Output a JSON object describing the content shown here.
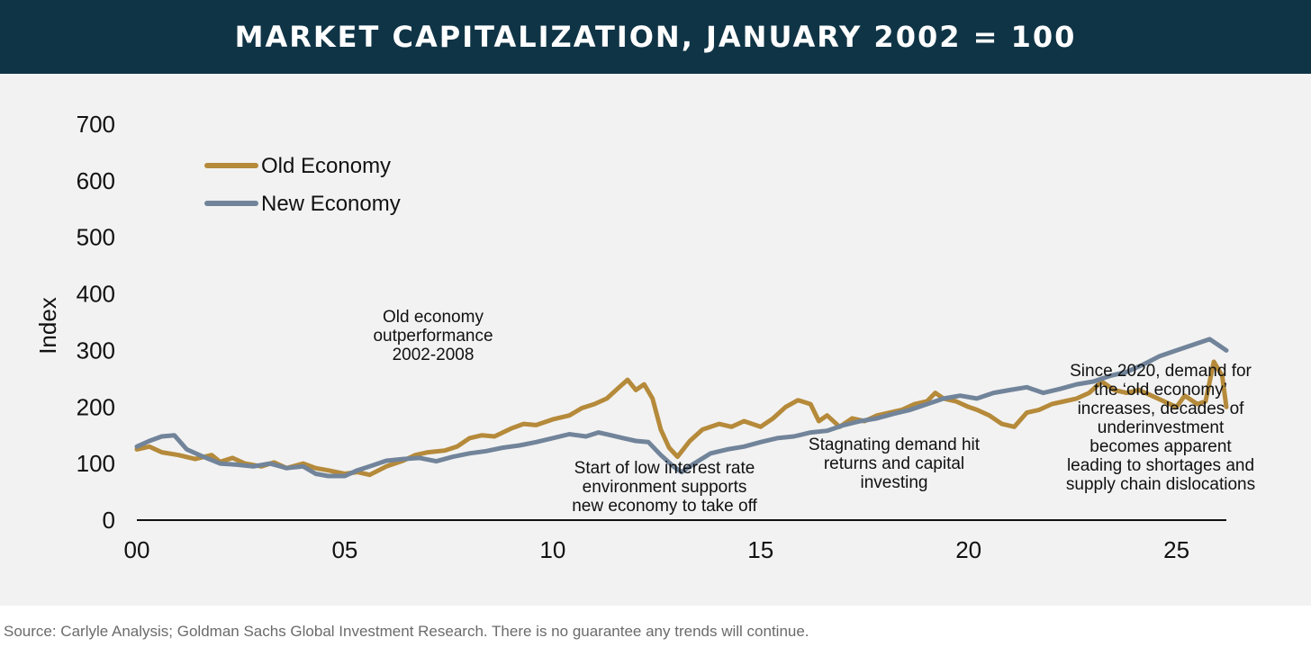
{
  "header": {
    "title": "MARKET CAPITALIZATION, JANUARY 2002 = 100"
  },
  "footer": {
    "source": "Source: Carlyle Analysis; Goldman Sachs Global Investment Research. There is no guarantee any trends will continue."
  },
  "colors": {
    "old_economy": "#b58a3a",
    "new_economy": "#71849a",
    "header_bg": "#0f3446",
    "panel_bg": "#f2f2f2",
    "axis": "#111111"
  },
  "chart_data": {
    "type": "line",
    "title": "MARKET CAPITALIZATION, JANUARY 2002 = 100",
    "xlabel": "",
    "ylabel": "Index",
    "xlim": [
      2000,
      2026.2
    ],
    "ylim": [
      0,
      700
    ],
    "x_ticks": [
      2000,
      2005,
      2010,
      2015,
      2020,
      2025
    ],
    "x_tick_labels": [
      "00",
      "05",
      "10",
      "15",
      "20",
      "25"
    ],
    "y_ticks": [
      0,
      100,
      200,
      300,
      400,
      500,
      600,
      700
    ],
    "y_tick_labels": [
      "0",
      "100",
      "200",
      "300",
      "400",
      "500",
      "600",
      "700"
    ],
    "grid": false,
    "legend": "top-left",
    "series": [
      {
        "name": "Old Economy",
        "color": "#b58a3a",
        "points": [
          [
            2000.0,
            125
          ],
          [
            2000.3,
            130
          ],
          [
            2000.6,
            120
          ],
          [
            2001.0,
            115
          ],
          [
            2001.4,
            108
          ],
          [
            2001.8,
            115
          ],
          [
            2002.0,
            103
          ],
          [
            2002.3,
            110
          ],
          [
            2002.6,
            100
          ],
          [
            2003.0,
            95
          ],
          [
            2003.3,
            102
          ],
          [
            2003.6,
            92
          ],
          [
            2004.0,
            100
          ],
          [
            2004.3,
            92
          ],
          [
            2004.6,
            88
          ],
          [
            2005.0,
            82
          ],
          [
            2005.3,
            85
          ],
          [
            2005.6,
            80
          ],
          [
            2006.0,
            95
          ],
          [
            2006.4,
            105
          ],
          [
            2006.7,
            115
          ],
          [
            2007.0,
            120
          ],
          [
            2007.4,
            123
          ],
          [
            2007.7,
            130
          ],
          [
            2008.0,
            145
          ],
          [
            2008.3,
            150
          ],
          [
            2008.6,
            148
          ],
          [
            2009.0,
            162
          ],
          [
            2009.3,
            170
          ],
          [
            2009.6,
            168
          ],
          [
            2010.0,
            178
          ],
          [
            2010.4,
            185
          ],
          [
            2010.7,
            198
          ],
          [
            2011.0,
            205
          ],
          [
            2011.3,
            215
          ],
          [
            2011.6,
            235
          ],
          [
            2011.8,
            248
          ],
          [
            2012.0,
            230
          ],
          [
            2012.2,
            240
          ],
          [
            2012.4,
            215
          ],
          [
            2012.6,
            160
          ],
          [
            2012.8,
            128
          ],
          [
            2013.0,
            112
          ],
          [
            2013.3,
            140
          ],
          [
            2013.6,
            160
          ],
          [
            2014.0,
            170
          ],
          [
            2014.3,
            165
          ],
          [
            2014.6,
            175
          ],
          [
            2015.0,
            165
          ],
          [
            2015.3,
            180
          ],
          [
            2015.6,
            200
          ],
          [
            2015.9,
            212
          ],
          [
            2016.2,
            205
          ],
          [
            2016.4,
            175
          ],
          [
            2016.6,
            185
          ],
          [
            2016.9,
            165
          ],
          [
            2017.2,
            180
          ],
          [
            2017.5,
            175
          ],
          [
            2017.8,
            185
          ],
          [
            2018.1,
            190
          ],
          [
            2018.4,
            195
          ],
          [
            2018.7,
            205
          ],
          [
            2019.0,
            210
          ],
          [
            2019.2,
            225
          ],
          [
            2019.4,
            215
          ],
          [
            2019.7,
            210
          ],
          [
            2020.0,
            200
          ],
          [
            2020.2,
            195
          ],
          [
            2020.5,
            185
          ],
          [
            2020.8,
            170
          ],
          [
            2021.1,
            165
          ],
          [
            2021.4,
            190
          ],
          [
            2021.7,
            195
          ],
          [
            2022.0,
            205
          ],
          [
            2022.3,
            210
          ],
          [
            2022.6,
            215
          ],
          [
            2022.9,
            225
          ],
          [
            2023.2,
            245
          ],
          [
            2023.5,
            230
          ],
          [
            2023.8,
            225
          ],
          [
            2024.1,
            230
          ],
          [
            2024.4,
            220
          ],
          [
            2024.7,
            210
          ],
          [
            2025.0,
            200
          ],
          [
            2025.2,
            220
          ],
          [
            2025.5,
            205
          ],
          [
            2025.7,
            210
          ],
          [
            2025.9,
            280
          ],
          [
            2026.1,
            255
          ],
          [
            2026.2,
            200
          ]
        ]
      },
      {
        "name": "New Economy",
        "color": "#71849a",
        "points": [
          [
            2000.0,
            130
          ],
          [
            2000.3,
            140
          ],
          [
            2000.6,
            148
          ],
          [
            2000.9,
            150
          ],
          [
            2001.2,
            125
          ],
          [
            2001.6,
            112
          ],
          [
            2002.0,
            100
          ],
          [
            2002.4,
            98
          ],
          [
            2002.8,
            95
          ],
          [
            2003.2,
            100
          ],
          [
            2003.6,
            92
          ],
          [
            2004.0,
            95
          ],
          [
            2004.3,
            82
          ],
          [
            2004.6,
            78
          ],
          [
            2005.0,
            78
          ],
          [
            2005.3,
            88
          ],
          [
            2005.6,
            95
          ],
          [
            2006.0,
            105
          ],
          [
            2006.4,
            108
          ],
          [
            2006.8,
            110
          ],
          [
            2007.2,
            104
          ],
          [
            2007.6,
            112
          ],
          [
            2008.0,
            118
          ],
          [
            2008.4,
            122
          ],
          [
            2008.8,
            128
          ],
          [
            2009.2,
            132
          ],
          [
            2009.6,
            138
          ],
          [
            2010.0,
            145
          ],
          [
            2010.4,
            152
          ],
          [
            2010.8,
            148
          ],
          [
            2011.1,
            155
          ],
          [
            2011.4,
            150
          ],
          [
            2011.7,
            145
          ],
          [
            2012.0,
            140
          ],
          [
            2012.3,
            138
          ],
          [
            2012.6,
            115
          ],
          [
            2012.9,
            95
          ],
          [
            2013.1,
            85
          ],
          [
            2013.4,
            100
          ],
          [
            2013.8,
            118
          ],
          [
            2014.2,
            125
          ],
          [
            2014.6,
            130
          ],
          [
            2015.0,
            138
          ],
          [
            2015.4,
            145
          ],
          [
            2015.8,
            148
          ],
          [
            2016.2,
            155
          ],
          [
            2016.6,
            158
          ],
          [
            2017.0,
            168
          ],
          [
            2017.4,
            175
          ],
          [
            2017.8,
            180
          ],
          [
            2018.2,
            188
          ],
          [
            2018.6,
            195
          ],
          [
            2019.0,
            205
          ],
          [
            2019.4,
            215
          ],
          [
            2019.8,
            220
          ],
          [
            2020.2,
            215
          ],
          [
            2020.6,
            225
          ],
          [
            2021.0,
            230
          ],
          [
            2021.4,
            235
          ],
          [
            2021.8,
            225
          ],
          [
            2022.2,
            232
          ],
          [
            2022.6,
            240
          ],
          [
            2023.0,
            245
          ],
          [
            2023.4,
            255
          ],
          [
            2023.8,
            262
          ],
          [
            2024.2,
            275
          ],
          [
            2024.6,
            290
          ],
          [
            2025.0,
            300
          ],
          [
            2025.4,
            310
          ],
          [
            2025.8,
            320
          ],
          [
            2026.2,
            300
          ]
        ]
      }
    ],
    "annotations": [
      {
        "text": [
          "Old economy",
          "outperformance",
          "2002-2008"
        ]
      },
      {
        "text": [
          "Start of low interest rate",
          "environment supports",
          "new economy to take off"
        ]
      },
      {
        "text": [
          "Stagnating demand hit",
          "returns and capital",
          "investing"
        ]
      },
      {
        "text": [
          "Since 2020, demand for",
          "the ‘old economy’",
          "increases, decades of",
          "underinvestment",
          "becomes apparent",
          "leading to shortages and",
          "supply chain dislocations"
        ]
      }
    ]
  }
}
